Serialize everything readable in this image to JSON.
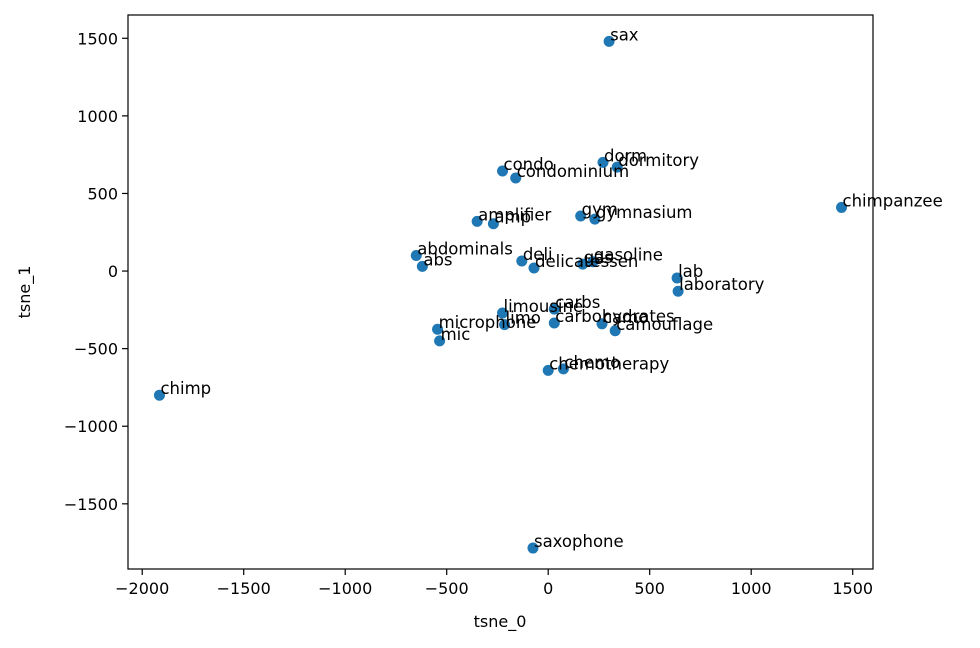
{
  "chart_data": {
    "type": "scatter",
    "xlabel": "tsne_0",
    "ylabel": "tsne_1",
    "xlim": [
      -2070,
      1600
    ],
    "ylim": [
      -1920,
      1650
    ],
    "xticks": [
      -2000,
      -1500,
      -1000,
      -500,
      0,
      500,
      1000,
      1500
    ],
    "yticks": [
      -1500,
      -1000,
      -500,
      0,
      500,
      1000,
      1500
    ],
    "xtick_labels": [
      "−2000",
      "−1500",
      "−1000",
      "−500",
      "0",
      "500",
      "1000",
      "1500"
    ],
    "ytick_labels": [
      "−1500",
      "−1000",
      "−500",
      "0",
      "500",
      "1000",
      "1500"
    ],
    "grid": false,
    "point_color": "#1f77b4",
    "points": [
      {
        "label": "sax",
        "x": 300,
        "y": 1480
      },
      {
        "label": "dorm",
        "x": 270,
        "y": 700
      },
      {
        "label": "dormitory",
        "x": 340,
        "y": 670
      },
      {
        "label": "condo",
        "x": -225,
        "y": 645
      },
      {
        "label": "condominium",
        "x": -160,
        "y": 600
      },
      {
        "label": "chimpanzee",
        "x": 1445,
        "y": 410
      },
      {
        "label": "gym",
        "x": 160,
        "y": 355
      },
      {
        "label": "gymnasium",
        "x": 230,
        "y": 335
      },
      {
        "label": "amplifier",
        "x": -350,
        "y": 320
      },
      {
        "label": "amp",
        "x": -270,
        "y": 305
      },
      {
        "label": "abdominals",
        "x": -650,
        "y": 100
      },
      {
        "label": "deli",
        "x": -130,
        "y": 65
      },
      {
        "label": "gas",
        "x": 170,
        "y": 45
      },
      {
        "label": "gasoline",
        "x": 220,
        "y": 60
      },
      {
        "label": "delicatessen",
        "x": -70,
        "y": 20
      },
      {
        "label": "abs",
        "x": -620,
        "y": 30
      },
      {
        "label": "lab",
        "x": 635,
        "y": -45
      },
      {
        "label": "laboratory",
        "x": 640,
        "y": -130
      },
      {
        "label": "carbs",
        "x": 30,
        "y": -245
      },
      {
        "label": "limousine",
        "x": -225,
        "y": -270
      },
      {
        "label": "limo",
        "x": -215,
        "y": -345
      },
      {
        "label": "carbohydrates",
        "x": 30,
        "y": -335
      },
      {
        "label": "camo",
        "x": 265,
        "y": -340
      },
      {
        "label": "camouflage",
        "x": 330,
        "y": -385
      },
      {
        "label": "microphone",
        "x": -545,
        "y": -375
      },
      {
        "label": "mic",
        "x": -535,
        "y": -450
      },
      {
        "label": "chemo",
        "x": 75,
        "y": -630
      },
      {
        "label": "chemotherapy",
        "x": 0,
        "y": -640
      },
      {
        "label": "chimp",
        "x": -1915,
        "y": -800
      },
      {
        "label": "saxophone",
        "x": -75,
        "y": -1785
      }
    ]
  }
}
